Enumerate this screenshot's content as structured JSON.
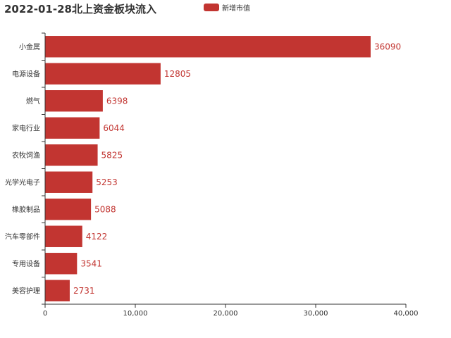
{
  "chart_data": {
    "type": "bar",
    "orientation": "horizontal",
    "title": "2022-01-28北上资金板块流入",
    "categories": [
      "小金属",
      "电源设备",
      "燃气",
      "家电行业",
      "农牧饲渔",
      "光学光电子",
      "橡胶制品",
      "汽车零部件",
      "专用设备",
      "美容护理"
    ],
    "series": [
      {
        "name": "新增市值",
        "values": [
          36090,
          12805,
          6398,
          6044,
          5825,
          5253,
          5088,
          4122,
          3541,
          2731
        ]
      }
    ],
    "xlim": [
      0,
      40000
    ],
    "xticks": [
      "0",
      "10,000",
      "20,000",
      "30,000",
      "40,000"
    ],
    "xlabel": "",
    "ylabel": "",
    "grid": false,
    "legend_position": "top-center",
    "bar_color": "#c23531"
  }
}
